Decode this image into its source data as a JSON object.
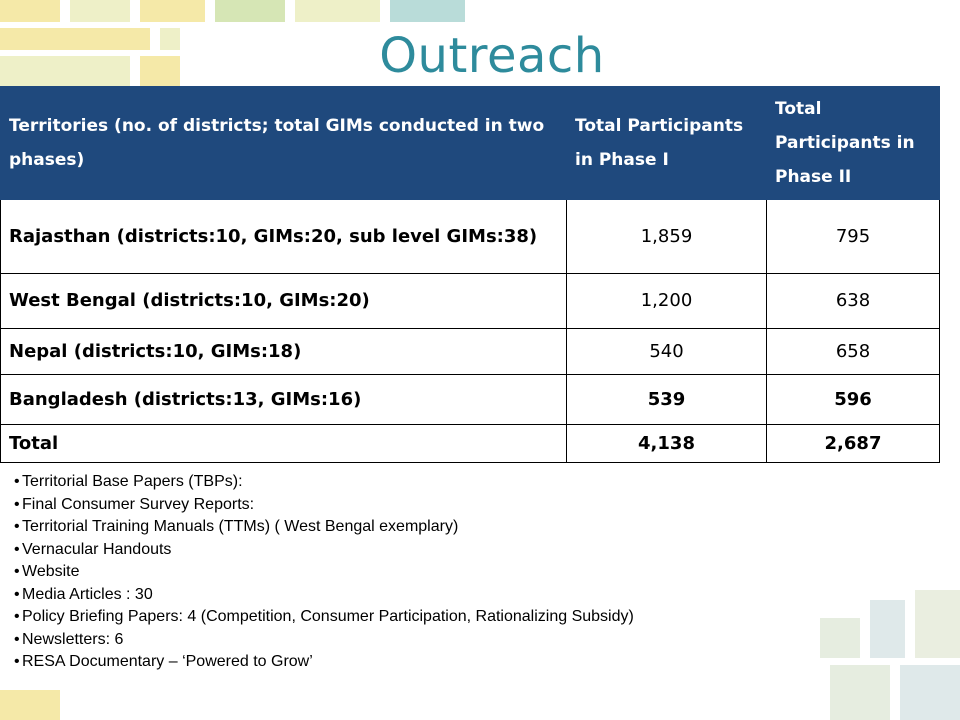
{
  "slide": {
    "title": "Outreach"
  },
  "table": {
    "headers": [
      "Territories (no. of districts; total GIMs conducted in two phases)",
      "Total Participants in Phase I",
      "Total Participants in Phase II"
    ],
    "rows": [
      {
        "territory": "Rajasthan (districts:10, GIMs:20, sub level GIMs:38)",
        "phase1": "1,859",
        "phase2": "795"
      },
      {
        "territory": "West Bengal  (districts:10, GIMs:20)",
        "phase1": "1,200",
        "phase2": "638"
      },
      {
        "territory": "Nepal (districts:10, GIMs:18)",
        "phase1": "540",
        "phase2": "658"
      },
      {
        "territory": "Bangladesh (districts:13, GIMs:16)",
        "phase1": "539",
        "phase2": "596"
      },
      {
        "territory": "Total",
        "phase1": "4,138",
        "phase2": "2,687"
      }
    ]
  },
  "bullets": {
    "marker": "•",
    "items": [
      "Territorial Base Papers (TBPs):",
      "Final Consumer Survey Reports:",
      "Territorial Training Manuals (TTMs) ( West Bengal exemplary)",
      "Vernacular Handouts",
      "Website",
      "Media Articles :  30",
      "Policy Briefing Papers: 4 (Competition, Consumer Participation, Rationalizing Subsidy)",
      "Newsletters: 6",
      "RESA Documentary – ‘Powered to Grow’"
    ]
  },
  "colors": {
    "title": "#2e8b9c",
    "header_bg": "#1f497d",
    "tile_yellow": "#f5e9a8",
    "tile_green": "#d6e6b5",
    "tile_teal": "#b9dcd9"
  }
}
